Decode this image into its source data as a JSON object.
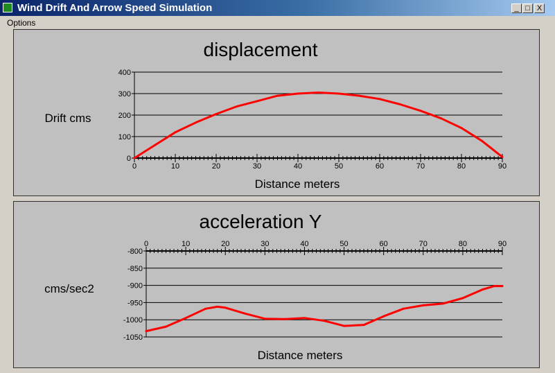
{
  "window": {
    "title": "Wind Drift And Arrow Speed Simulation",
    "icon": "green-square-icon",
    "buttons": {
      "minimize": "_",
      "maximize": "□",
      "close": "X"
    }
  },
  "menu": {
    "options_label": "Options"
  },
  "colors": {
    "series": "#ff0000",
    "panel": "#c0c0c0",
    "background": "#d4d0c8"
  },
  "chart_data": [
    {
      "type": "line",
      "title": "displacement",
      "xlabel": "Distance meters",
      "ylabel": "Drift cms",
      "xlim": [
        0,
        90
      ],
      "ylim": [
        0,
        400
      ],
      "x_ticks": [
        0,
        10,
        20,
        30,
        40,
        50,
        60,
        70,
        80,
        90
      ],
      "y_ticks": [
        0,
        100,
        200,
        300,
        400
      ],
      "x_axis_position": "bottom",
      "grid": "horizontal",
      "series": [
        {
          "x": [
            0,
            5,
            10,
            15,
            20,
            25,
            30,
            35,
            40,
            45,
            50,
            55,
            60,
            65,
            70,
            75,
            80,
            85,
            90
          ],
          "values": [
            0,
            60,
            120,
            165,
            205,
            240,
            265,
            290,
            300,
            305,
            300,
            290,
            275,
            250,
            220,
            185,
            140,
            80,
            5
          ],
          "color": "#ff0000"
        }
      ]
    },
    {
      "type": "line",
      "title": "acceleration Y",
      "xlabel": "Distance meters",
      "ylabel": "cms/sec2",
      "xlim": [
        0,
        90
      ],
      "ylim": [
        -1050,
        -800
      ],
      "x_ticks": [
        0,
        10,
        20,
        30,
        40,
        50,
        60,
        70,
        80,
        90
      ],
      "y_ticks": [
        -800,
        -850,
        -900,
        -950,
        -1000,
        -1050
      ],
      "x_axis_position": "top",
      "grid": "horizontal",
      "series": [
        {
          "x": [
            0,
            5,
            10,
            15,
            18,
            20,
            25,
            30,
            35,
            40,
            45,
            50,
            55,
            60,
            65,
            70,
            75,
            80,
            85,
            88,
            90
          ],
          "values": [
            -1033,
            -1020,
            -995,
            -968,
            -962,
            -965,
            -982,
            -997,
            -998,
            -995,
            -1003,
            -1018,
            -1015,
            -990,
            -968,
            -958,
            -953,
            -937,
            -912,
            -902,
            -902
          ],
          "color": "#ff0000"
        }
      ]
    }
  ]
}
